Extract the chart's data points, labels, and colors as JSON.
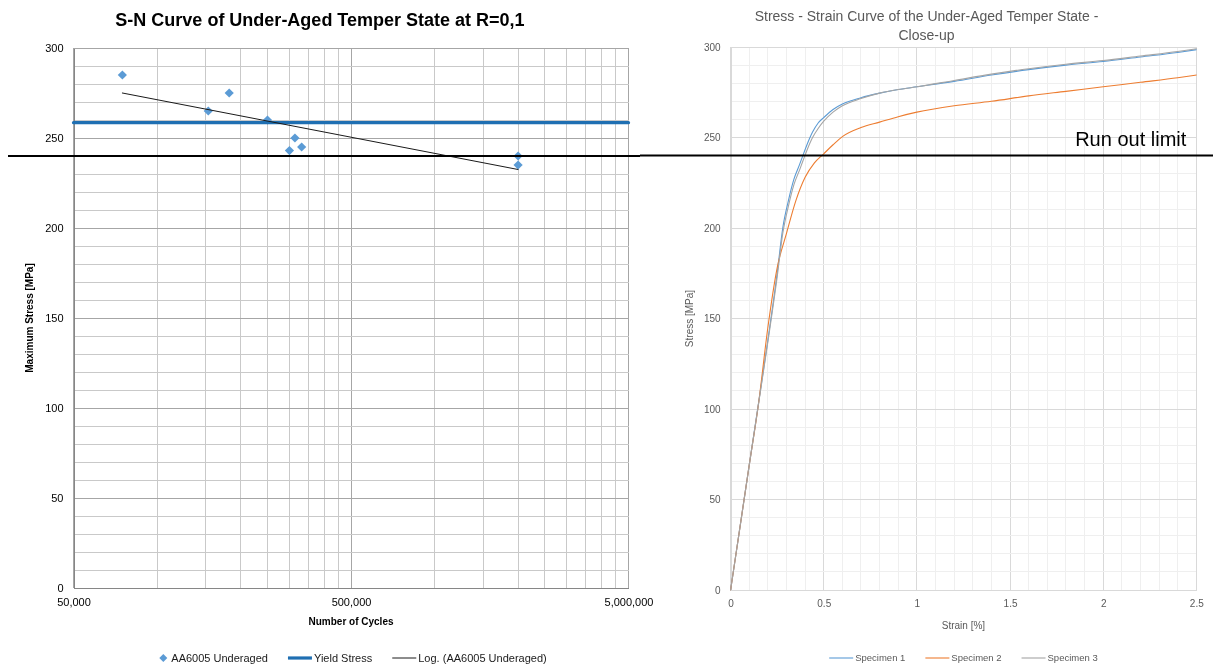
{
  "chart_data": [
    {
      "type": "scatter",
      "title": "S-N Curve of Under-Aged Temper State at R=0,1",
      "xlabel": "Number of Cycles",
      "ylabel": "Maximum Stress [MPa]",
      "log": "x",
      "xlim": [
        50000,
        5000000
      ],
      "ylim": [
        0,
        300
      ],
      "xticks": [
        {
          "value": 50000,
          "label": "50,000"
        },
        {
          "value": 100000,
          "label": null
        },
        {
          "value": 150000,
          "label": null
        },
        {
          "value": 200000,
          "label": null
        },
        {
          "value": 250000,
          "label": null
        },
        {
          "value": 300000,
          "label": null
        },
        {
          "value": 350000,
          "label": null
        },
        {
          "value": 400000,
          "label": null
        },
        {
          "value": 450000,
          "label": null
        },
        {
          "value": 500000,
          "label": "500,000"
        },
        {
          "value": 1000000,
          "label": null
        },
        {
          "value": 1500000,
          "label": null
        },
        {
          "value": 2000000,
          "label": null
        },
        {
          "value": 2500000,
          "label": null
        },
        {
          "value": 3000000,
          "label": null
        },
        {
          "value": 3500000,
          "label": null
        },
        {
          "value": 4000000,
          "label": null
        },
        {
          "value": 4500000,
          "label": null
        },
        {
          "value": 5000000,
          "label": "5,000,000"
        }
      ],
      "yticks": [
        0,
        {
          "value": 10,
          "label": null
        },
        {
          "value": 20,
          "label": null
        },
        {
          "value": 30,
          "label": null
        },
        {
          "value": 40,
          "label": null
        },
        50,
        {
          "value": 60,
          "label": null
        },
        {
          "value": 70,
          "label": null
        },
        {
          "value": 80,
          "label": null
        },
        {
          "value": 90,
          "label": null
        },
        100,
        {
          "value": 110,
          "label": null
        },
        {
          "value": 120,
          "label": null
        },
        {
          "value": 130,
          "label": null
        },
        {
          "value": 140,
          "label": null
        },
        150,
        {
          "value": 160,
          "label": null
        },
        {
          "value": 170,
          "label": null
        },
        {
          "value": 180,
          "label": null
        },
        {
          "value": 190,
          "label": null
        },
        200,
        {
          "value": 210,
          "label": null
        },
        {
          "value": 220,
          "label": null
        },
        {
          "value": 230,
          "label": null
        },
        {
          "value": 240,
          "label": null
        },
        250,
        {
          "value": 260,
          "label": null
        },
        {
          "value": 270,
          "label": null
        },
        {
          "value": 280,
          "label": null
        },
        {
          "value": 290,
          "label": null
        },
        300
      ],
      "grid": true,
      "legend": "bottom",
      "series": [
        {
          "name": "AA6005 Underaged",
          "marker": "diamond",
          "color": "#5b9bd5",
          "x": [
            75000,
            153000,
            182000,
            250000,
            300000,
            314000,
            332000,
            2000000,
            2000000
          ],
          "values": [
            285,
            265,
            275,
            260,
            243,
            250,
            245,
            240,
            235
          ]
        },
        {
          "name": "Yield Stress",
          "type": "line",
          "color": "#1f6fb2",
          "x": [
            50000,
            5000000
          ],
          "values": [
            258.5,
            258.5
          ]
        },
        {
          "name": "Log. (AA6005 Underaged)",
          "type": "line",
          "color": "#1a1a1a",
          "x": [
            75000,
            2000000
          ],
          "values": [
            275,
            232.5
          ]
        }
      ],
      "ref_lines": [
        {
          "axis": "y",
          "value": 240,
          "color": "#000000"
        }
      ]
    },
    {
      "type": "line",
      "title": "Stress - Strain Curve of the Under-Aged Temper State - Close-up",
      "xlabel": "Strain [%]",
      "ylabel": "Stress [MPa]",
      "xlim": [
        0,
        2.5
      ],
      "ylim": [
        0,
        300
      ],
      "xticks": [
        0,
        {
          "value": 0.1,
          "label": null
        },
        {
          "value": 0.2,
          "label": null
        },
        {
          "value": 0.3,
          "label": null
        },
        {
          "value": 0.4,
          "label": null
        },
        0.5,
        {
          "value": 0.6,
          "label": null
        },
        {
          "value": 0.7,
          "label": null
        },
        {
          "value": 0.8,
          "label": null
        },
        {
          "value": 0.9,
          "label": null
        },
        1,
        {
          "value": 1.1,
          "label": null
        },
        {
          "value": 1.2,
          "label": null
        },
        {
          "value": 1.3,
          "label": null
        },
        {
          "value": 1.4,
          "label": null
        },
        1.5,
        {
          "value": 1.6,
          "label": null
        },
        {
          "value": 1.7,
          "label": null
        },
        {
          "value": 1.8,
          "label": null
        },
        {
          "value": 1.9,
          "label": null
        },
        2,
        {
          "value": 2.1,
          "label": null
        },
        {
          "value": 2.2,
          "label": null
        },
        {
          "value": 2.3,
          "label": null
        },
        {
          "value": 2.4,
          "label": null
        },
        2.5
      ],
      "yticks": [
        0,
        {
          "value": 10,
          "label": null
        },
        {
          "value": 20,
          "label": null
        },
        {
          "value": 30,
          "label": null
        },
        {
          "value": 40,
          "label": null
        },
        50,
        {
          "value": 60,
          "label": null
        },
        {
          "value": 70,
          "label": null
        },
        {
          "value": 80,
          "label": null
        },
        {
          "value": 90,
          "label": null
        },
        100,
        {
          "value": 110,
          "label": null
        },
        {
          "value": 120,
          "label": null
        },
        {
          "value": 130,
          "label": null
        },
        {
          "value": 140,
          "label": null
        },
        150,
        {
          "value": 160,
          "label": null
        },
        {
          "value": 170,
          "label": null
        },
        {
          "value": 180,
          "label": null
        },
        {
          "value": 190,
          "label": null
        },
        200,
        {
          "value": 210,
          "label": null
        },
        {
          "value": 220,
          "label": null
        },
        {
          "value": 230,
          "label": null
        },
        {
          "value": 240,
          "label": null
        },
        250,
        {
          "value": 260,
          "label": null
        },
        {
          "value": 270,
          "label": null
        },
        {
          "value": 280,
          "label": null
        },
        {
          "value": 290,
          "label": null
        },
        300
      ],
      "grid": true,
      "legend": "bottom",
      "series": [
        {
          "name": "Specimen 1",
          "color": "#5b9bd5",
          "x": [
            0,
            0.1,
            0.2,
            0.25,
            0.28,
            0.31,
            0.34,
            0.37,
            0.388,
            0.41,
            0.44,
            0.47,
            0.5,
            0.55,
            0.6,
            0.7,
            0.8,
            0.9,
            1.0,
            1.2,
            1.4,
            1.6,
            1.8,
            2.0,
            2.2,
            2.4,
            2.5
          ],
          "values": [
            0,
            69,
            138,
            175,
            200,
            215,
            227,
            235,
            240,
            246,
            253,
            258,
            261,
            265.5,
            268.5,
            272,
            274.5,
            276.5,
            278,
            281,
            284.5,
            287.5,
            290,
            292,
            294.5,
            297,
            298.5
          ]
        },
        {
          "name": "Specimen 2",
          "color": "#ed7d31",
          "x": [
            0,
            0.1,
            0.15,
            0.2,
            0.25,
            0.3,
            0.35,
            0.4,
            0.45,
            0.5,
            0.55,
            0.6,
            0.7,
            0.8,
            0.9,
            1.0,
            1.2,
            1.4,
            1.6,
            1.8,
            2.0,
            2.2,
            2.4,
            2.5
          ],
          "values": [
            0,
            69,
            103,
            145,
            178,
            197,
            215,
            228,
            236,
            241,
            246,
            250.5,
            255.5,
            258.5,
            261.5,
            264,
            267.5,
            270,
            273,
            275.5,
            278,
            280.5,
            283,
            284.5
          ]
        },
        {
          "name": "Specimen 3",
          "color": "#a5a5a5",
          "x": [
            0,
            0.1,
            0.2,
            0.25,
            0.28,
            0.31,
            0.34,
            0.37,
            0.388,
            0.41,
            0.44,
            0.47,
            0.5,
            0.55,
            0.6,
            0.7,
            0.8,
            0.9,
            1.0,
            1.2,
            1.4,
            1.6,
            1.8,
            2.0,
            2.2,
            2.4,
            2.5
          ],
          "values": [
            0,
            69,
            137,
            173,
            197,
            212,
            224,
            232,
            237,
            243,
            250,
            255,
            259,
            264,
            267.5,
            271.5,
            274.5,
            276.5,
            278,
            281.5,
            285,
            288,
            290.5,
            292.5,
            295,
            297.5,
            299
          ]
        }
      ],
      "ref_lines": [
        {
          "axis": "y",
          "value": 240,
          "label": "Run out limit",
          "color": "#000000"
        }
      ]
    }
  ]
}
